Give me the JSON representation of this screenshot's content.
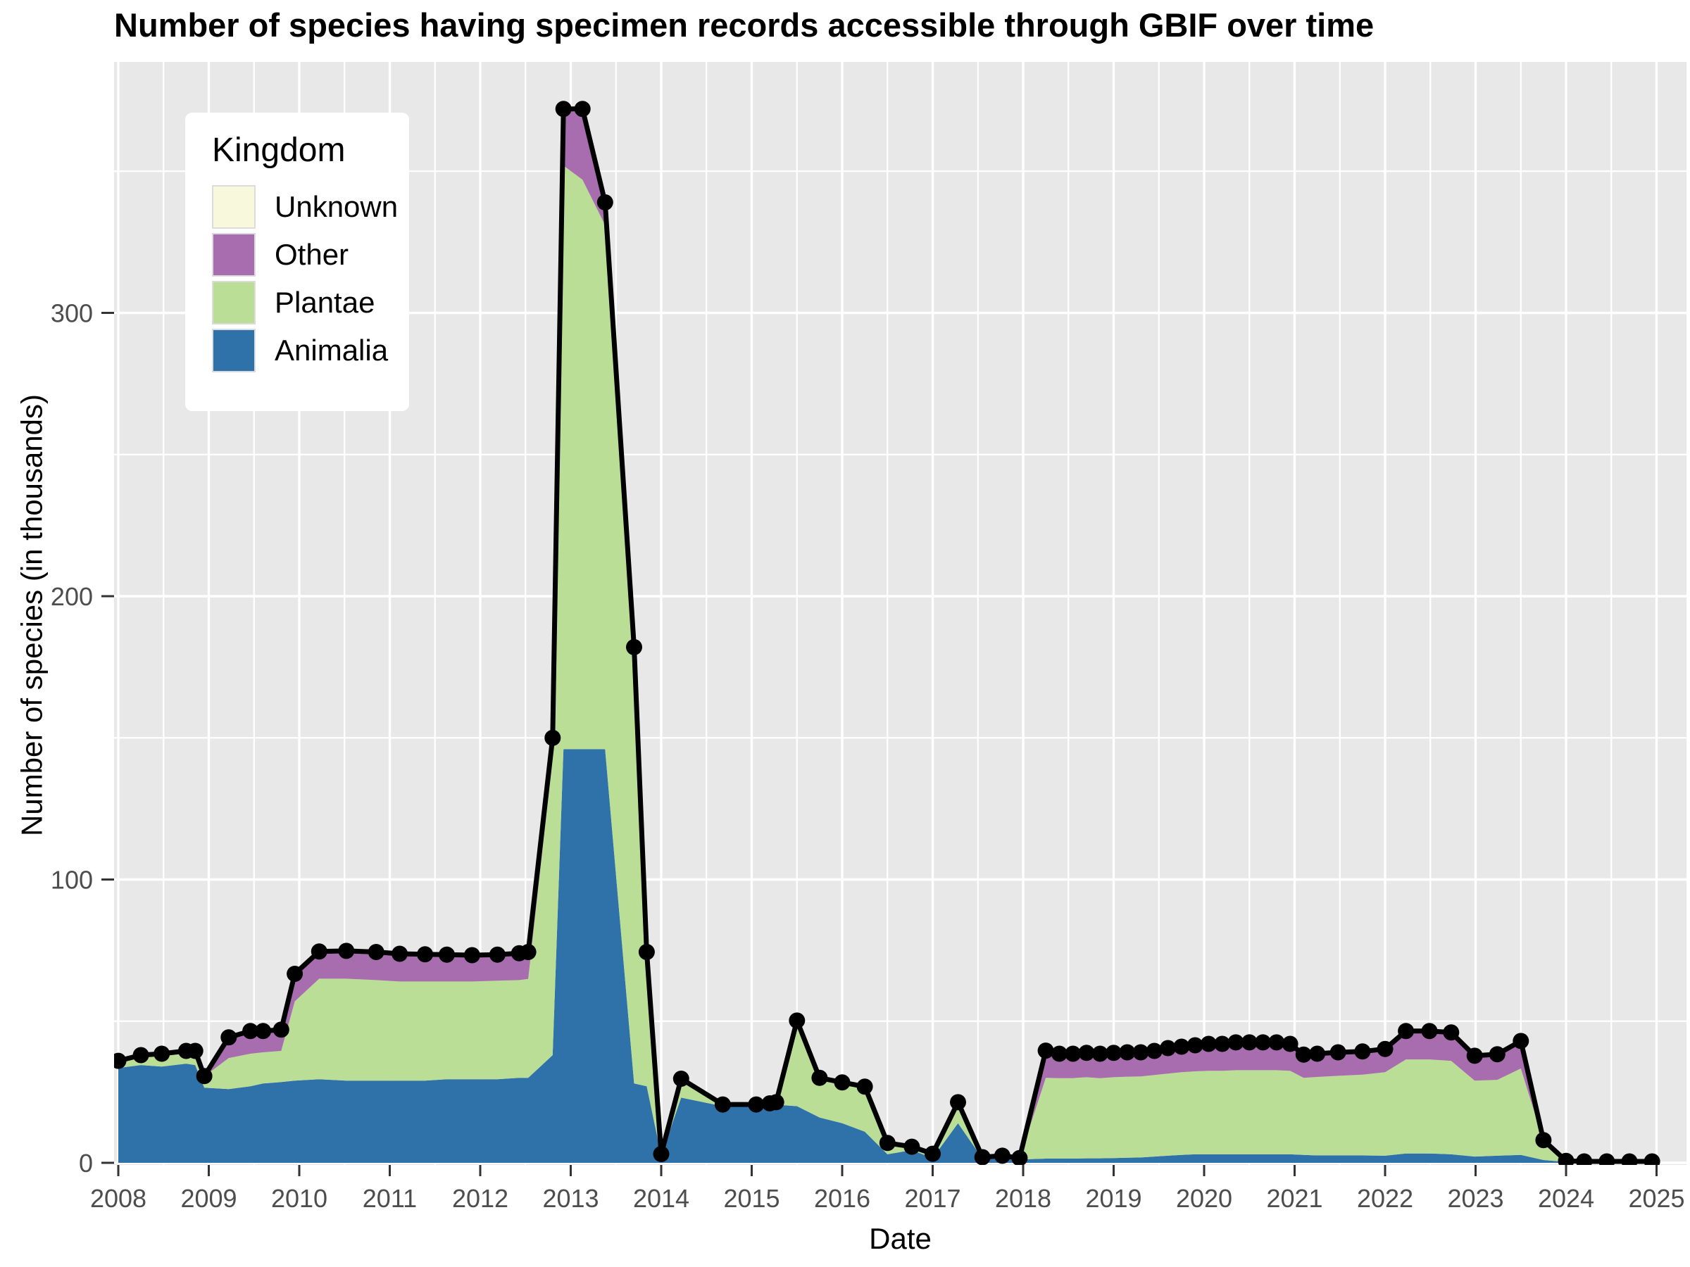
{
  "chart_data": {
    "type": "area",
    "stacked": true,
    "title": "Number of species having specimen records accessible through GBIF over time",
    "xlabel": "Date",
    "ylabel": "Number of species (in thousands)",
    "grid": true,
    "legend_position": "top-left-inset",
    "legend": {
      "title": "Kingdom",
      "items": [
        "Unknown",
        "Other",
        "Plantae",
        "Animalia"
      ]
    },
    "x_ticks": [
      2008,
      2009,
      2010,
      2011,
      2012,
      2013,
      2014,
      2015,
      2016,
      2017,
      2018,
      2019,
      2020,
      2021,
      2022,
      2023,
      2024,
      2025
    ],
    "x_tick_labels": [
      "2008",
      "2009",
      "2010",
      "2011",
      "2012",
      "2013",
      "2014",
      "2015",
      "2016",
      "2017",
      "2018",
      "2019",
      "2020",
      "2021",
      "2022",
      "2023",
      "2024",
      "2025"
    ],
    "y_ticks": [
      0,
      100,
      200,
      300
    ],
    "y_tick_labels": [
      "0",
      "100",
      "200",
      "300"
    ],
    "y_minor_ticks": [
      50,
      150,
      250,
      350
    ],
    "xlim": [
      2007.95,
      2025.33
    ],
    "ylim": [
      0,
      389
    ],
    "x": [
      2008.0,
      2008.25,
      2008.48,
      2008.75,
      2008.85,
      2008.95,
      2009.22,
      2009.46,
      2009.6,
      2009.8,
      2009.95,
      2010.22,
      2010.52,
      2010.85,
      2011.11,
      2011.39,
      2011.63,
      2011.91,
      2012.19,
      2012.43,
      2012.53,
      2012.8,
      2012.92,
      2013.13,
      2013.38,
      2013.7,
      2013.84,
      2014.0,
      2014.22,
      2014.68,
      2015.05,
      2015.2,
      2015.27,
      2015.5,
      2015.75,
      2016.0,
      2016.25,
      2016.5,
      2016.77,
      2017.0,
      2017.28,
      2017.55,
      2017.77,
      2017.96,
      2018.25,
      2018.4,
      2018.55,
      2018.7,
      2018.85,
      2019.0,
      2019.15,
      2019.3,
      2019.45,
      2019.6,
      2019.75,
      2019.9,
      2020.05,
      2020.2,
      2020.35,
      2020.5,
      2020.65,
      2020.8,
      2020.95,
      2021.1,
      2021.25,
      2021.48,
      2021.75,
      2022.0,
      2022.23,
      2022.49,
      2022.73,
      2022.99,
      2023.24,
      2023.5,
      2023.75,
      2024.0,
      2024.2,
      2024.45,
      2024.7,
      2024.95
    ],
    "series": [
      {
        "name": "Animalia",
        "color": "#2F72A9",
        "values": [
          33.5,
          34.5,
          34,
          35,
          34.5,
          26.5,
          26,
          27,
          28,
          28.5,
          29,
          29.5,
          29,
          29,
          29,
          29,
          29.5,
          29.5,
          29.5,
          30,
          30,
          38,
          146,
          146,
          146,
          28,
          27,
          2.5,
          23,
          20,
          20,
          20.4,
          20.5,
          20,
          16,
          14,
          11,
          3,
          4.5,
          1.7,
          14,
          1.5,
          2,
          1.2,
          1.5,
          1.5,
          1.5,
          1.6,
          1.6,
          1.7,
          1.8,
          1.9,
          2.2,
          2.5,
          2.8,
          3,
          3,
          3,
          3,
          3,
          3,
          3,
          3,
          2.8,
          2.6,
          2.6,
          2.6,
          2.5,
          3.3,
          3.3,
          3,
          2.2,
          2.5,
          2.8,
          1,
          0.3,
          0.2,
          0.2,
          0.2,
          0.2
        ]
      },
      {
        "name": "Plantae",
        "color": "#BBDE96",
        "values": [
          2.5,
          3.3,
          4.3,
          4.2,
          4.7,
          4,
          11,
          11.5,
          11,
          11,
          28,
          35.5,
          36,
          35.5,
          35,
          35,
          34.5,
          34.5,
          34.8,
          34.5,
          34.9,
          105,
          206,
          201,
          185,
          152,
          46.5,
          0.5,
          6.3,
          0.4,
          0.4,
          0.4,
          0.7,
          30,
          13.8,
          14.2,
          15.7,
          3.9,
          1.1,
          1.4,
          7.3,
          0.4,
          0.4,
          0.4,
          28.5,
          28.4,
          28.4,
          28.6,
          28.3,
          28.5,
          28.6,
          28.6,
          28.8,
          29,
          29.2,
          29.3,
          29.5,
          29.5,
          29.7,
          29.7,
          29.7,
          29.7,
          29.5,
          27.2,
          27.7,
          28.1,
          28.5,
          29.5,
          33.2,
          33.2,
          33,
          26.8,
          26.8,
          30.5,
          6.5,
          0.3,
          0.2,
          0.2,
          0.2,
          0.2
        ]
      },
      {
        "name": "Other",
        "color": "#A76DAE",
        "values": [
          0,
          0.2,
          0.2,
          0.3,
          0.3,
          0.1,
          7.3,
          8,
          7.5,
          7.5,
          9.7,
          9.6,
          9.8,
          9.9,
          9.8,
          9.6,
          9.5,
          9.3,
          9.2,
          9.5,
          9.5,
          7,
          20,
          25,
          8,
          2,
          0.9,
          0.1,
          0.4,
          0.2,
          0.2,
          0.2,
          0.2,
          0.2,
          0.2,
          0.2,
          0.2,
          0.1,
          0.1,
          0.1,
          0.1,
          0.1,
          0.1,
          0.1,
          9.6,
          8.6,
          8.6,
          8.6,
          8.6,
          8.6,
          8.6,
          8.5,
          8.5,
          9,
          9,
          9.2,
          9.5,
          9.5,
          9.8,
          9.8,
          9.8,
          9.8,
          9.5,
          8.2,
          8.2,
          8.3,
          8.2,
          8.2,
          10,
          10,
          10,
          8.8,
          9,
          9.7,
          0.5,
          0.1,
          0.1,
          0.1,
          0.1,
          0.1
        ]
      },
      {
        "name": "Unknown",
        "color": "#F8F8DC",
        "values": [
          0,
          0,
          0,
          0,
          0,
          0,
          0,
          0,
          0,
          0,
          0,
          0,
          0,
          0,
          0,
          0,
          0,
          0,
          0,
          0,
          0,
          0,
          0,
          0,
          0,
          0,
          0,
          0,
          0,
          0,
          0,
          0,
          0,
          0,
          0,
          0,
          0,
          0,
          0,
          0,
          0,
          0,
          0,
          0,
          0,
          0,
          0,
          0,
          0,
          0,
          0,
          0,
          0,
          0,
          0,
          0,
          0,
          0,
          0,
          0,
          0,
          0,
          0,
          0,
          0,
          0,
          0,
          0,
          0,
          0,
          0,
          0,
          0,
          0,
          0,
          0,
          0,
          0,
          0,
          0
        ]
      }
    ],
    "style": {
      "panel_background": "#E8E8E8",
      "grid_color": "#FFFFFF",
      "line_color": "#000000",
      "axis_text_color": "#4D4D4D",
      "tick_color": "#333333"
    }
  }
}
